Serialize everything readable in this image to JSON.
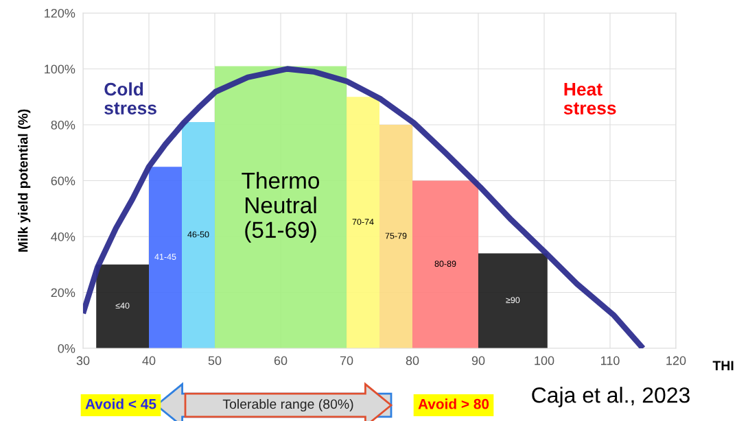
{
  "chart_data": {
    "type": "histogram",
    "ylabel": "Milk yield potential (%)",
    "xlabel": "THI",
    "bins": [
      32,
      40,
      45,
      50,
      70,
      75,
      80,
      90,
      100.5
    ],
    "values": [
      30,
      65,
      81,
      101,
      90,
      80,
      60,
      34
    ],
    "colors": [
      "#1a1a1a",
      "#426bff",
      "#6fd6f7",
      "#a3f07e",
      "#fffa78",
      "#fcd97f",
      "#ff7b7b",
      "#1a1a1a"
    ],
    "value_labels": [
      "≤40",
      "41-45",
      "46-50",
      "Thermo\nNeutral\n(51-69)",
      "70-74",
      "75-79",
      "80-89",
      "≥90"
    ],
    "series": [
      {
        "type": "line",
        "color": "#2e2e8f",
        "x": [
          30,
          32.2,
          35,
          37.5,
          40,
          42.5,
          45.2,
          47.5,
          50.1,
          55,
          61,
          65,
          70.1,
          75.2,
          80.2,
          85,
          90.3,
          95,
          100.3,
          105,
          110.5,
          115
        ],
        "values": [
          12.5,
          29,
          43,
          53.4,
          65,
          73,
          80.5,
          86,
          91.8,
          97,
          100,
          99,
          95.5,
          89.2,
          80.7,
          70,
          57.7,
          46,
          34,
          23,
          12,
          0
        ]
      }
    ],
    "annotations": [
      "Cold\nstress",
      "Heat\nstress",
      "Avoid < 45",
      "Tolerable range (80%)",
      "Avoid > 80",
      "Caja et al., 2023"
    ],
    "xlim": [
      30,
      120
    ],
    "xticks": [
      30,
      40,
      50,
      60,
      70,
      80,
      90,
      100,
      110,
      120
    ],
    "ylim": [
      0,
      120
    ],
    "yticks": [
      {
        "value": 0,
        "label": "0%"
      },
      {
        "value": 20,
        "label": "20%"
      },
      {
        "value": 40,
        "label": "40%"
      },
      {
        "value": 60,
        "label": "60%"
      },
      {
        "value": 80,
        "label": "80%"
      },
      {
        "value": 100,
        "label": "100%"
      },
      {
        "value": 120,
        "label": "120%"
      }
    ],
    "grid": true
  }
}
